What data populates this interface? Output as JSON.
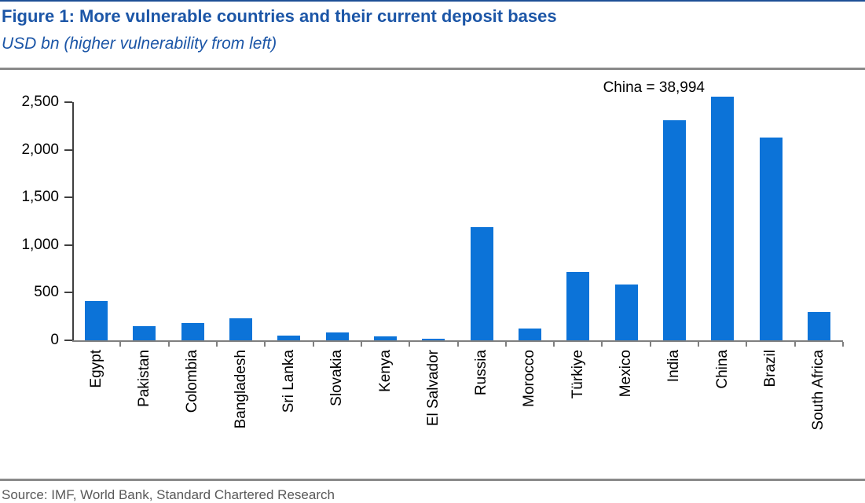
{
  "header": {
    "title": "Figure 1: More vulnerable countries and their current deposit bases",
    "subtitle": "USD bn (higher vulnerability from left)"
  },
  "footer": {
    "source": "Source: IMF, World Bank, Standard Chartered Research"
  },
  "colors": {
    "bar_blue": "#0c73d8",
    "title_blue": "#1c56a7",
    "top_line_blue": "#1e4f96",
    "rule_gray": "#8a8a8a",
    "x_axis_gray": "#7f7f7f",
    "y_axis_dark": "#3f3f3f",
    "source_gray": "#595959"
  },
  "chart_data": {
    "type": "bar",
    "title": "Figure 1: More vulnerable countries and their current deposit bases",
    "ylabel_unit": "USD bn",
    "order_note": "higher vulnerability from left",
    "categories": [
      "Egypt",
      "Pakistan",
      "Colombia",
      "Bangladesh",
      "Sri Lanka",
      "Slovakia",
      "Kenya",
      "El Salvador",
      "Russia",
      "Morocco",
      "Türkiye",
      "Mexico",
      "India",
      "China",
      "Brazil",
      "South Africa"
    ],
    "values": [
      410,
      145,
      180,
      230,
      50,
      80,
      40,
      12,
      1190,
      125,
      720,
      585,
      2310,
      38994,
      2125,
      295
    ],
    "annotation": "China = 38,994",
    "bar_clipped_at_top": "China",
    "ylim": [
      0,
      2500
    ],
    "yticks": [
      0,
      500,
      1000,
      1500,
      2000,
      2500
    ],
    "ytick_labels": [
      "0",
      "500",
      "1,000",
      "1,500",
      "2,000",
      "2,500"
    ],
    "grid": "off",
    "legend": "none"
  }
}
